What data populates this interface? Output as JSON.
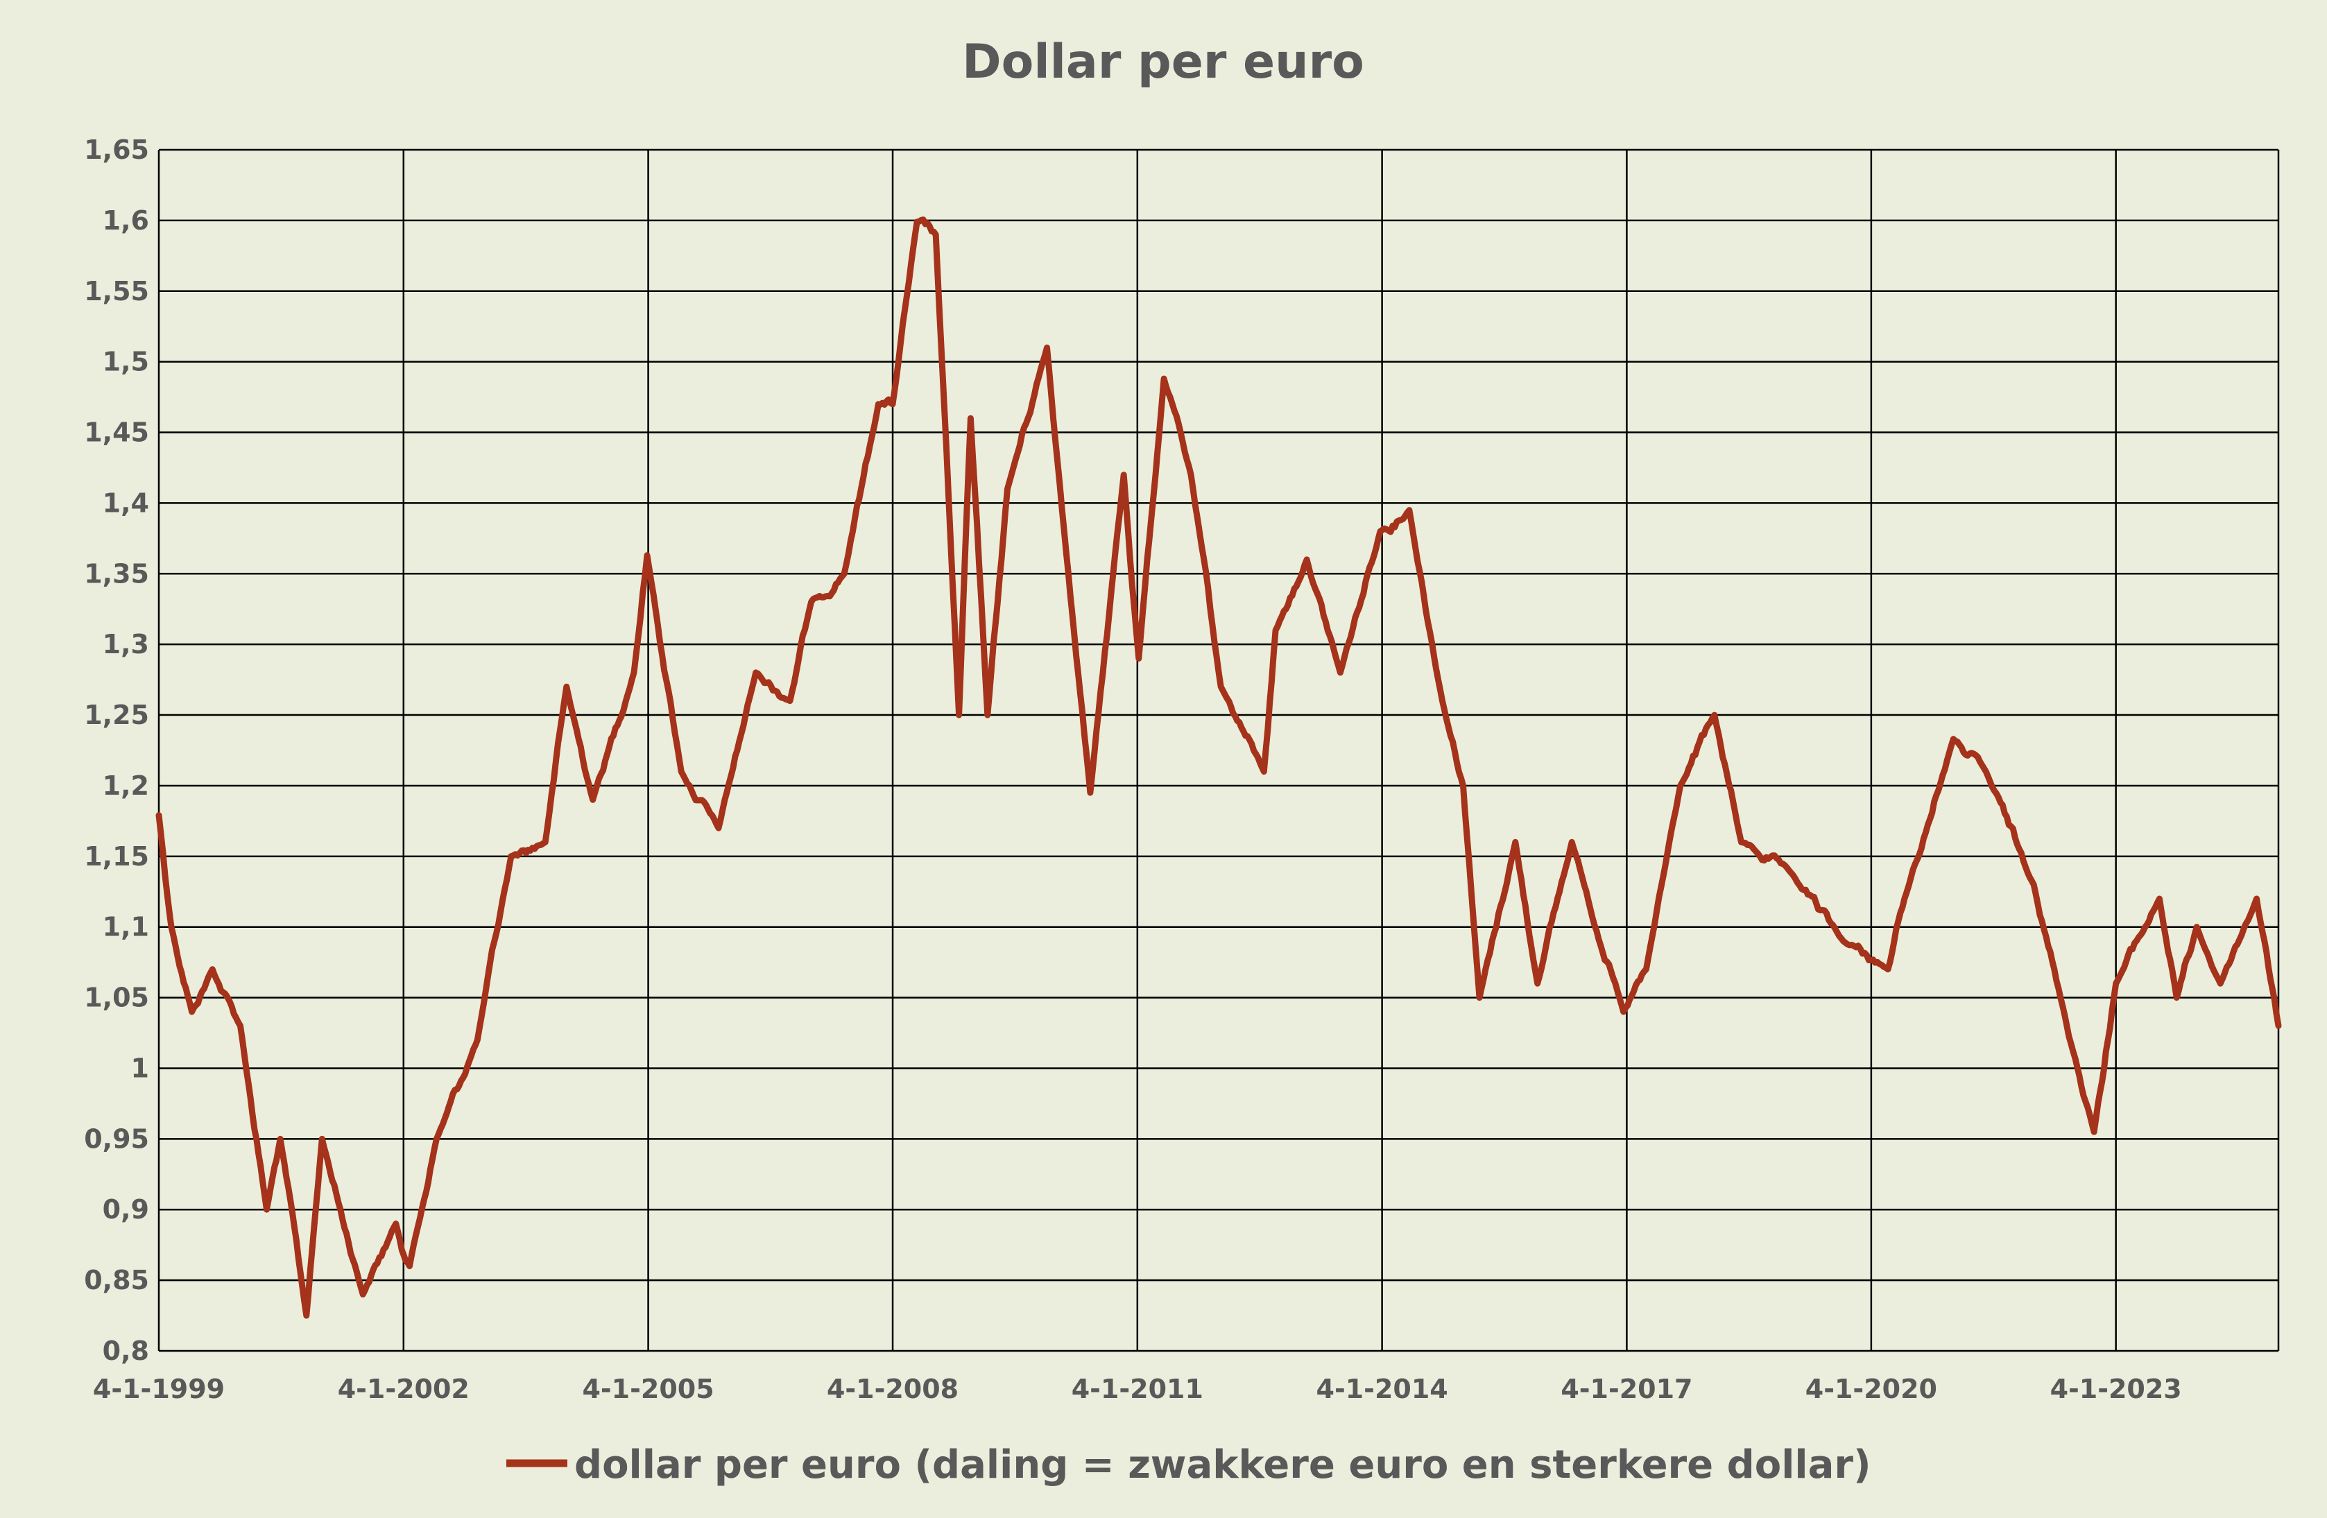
{
  "chart_data": {
    "type": "line",
    "title": "Dollar per euro",
    "xlabel": "",
    "ylabel": "",
    "ylim": [
      0.8,
      1.65
    ],
    "y_ticks": [
      0.8,
      0.85,
      0.9,
      0.95,
      1.0,
      1.05,
      1.1,
      1.15,
      1.2,
      1.25,
      1.3,
      1.35,
      1.4,
      1.45,
      1.5,
      1.55,
      1.6,
      1.65
    ],
    "y_tick_labels": [
      "0,8",
      "0,85",
      "0,9",
      "0,95",
      "1",
      "1,05",
      "1,1",
      "1,15",
      "1,2",
      "1,25",
      "1,3",
      "1,35",
      "1,4",
      "1,45",
      "1,5",
      "1,55",
      "1,6",
      "1,65"
    ],
    "x_range": [
      "1999-01-04",
      "2025-01-01"
    ],
    "x_ticks": [
      "1999-01-04",
      "2002-01-04",
      "2005-01-04",
      "2008-01-04",
      "2011-01-04",
      "2014-01-04",
      "2017-01-04",
      "2020-01-04",
      "2023-01-04"
    ],
    "x_tick_labels": [
      "4-1-1999",
      "4-1-2002",
      "4-1-2005",
      "4-1-2008",
      "4-1-2011",
      "4-1-2014",
      "4-1-2017",
      "4-1-2020",
      "4-1-2023"
    ],
    "grid": true,
    "legend_position": "bottom",
    "colors": {
      "series": "#a5321a",
      "grid": "#000000",
      "text": "#595959",
      "background": "#ebeedc"
    },
    "series": [
      {
        "name": "dollar per euro (daling = zwakkere euro en sterkere dollar)",
        "points": [
          [
            "1999-01-04",
            1.179
          ],
          [
            "1999-03-01",
            1.1
          ],
          [
            "1999-06-01",
            1.04
          ],
          [
            "1999-09-01",
            1.07
          ],
          [
            "2000-01-04",
            1.03
          ],
          [
            "2000-05-01",
            0.9
          ],
          [
            "2000-07-01",
            0.95
          ],
          [
            "2000-10-26",
            0.825
          ],
          [
            "2001-01-04",
            0.95
          ],
          [
            "2001-07-06",
            0.84
          ],
          [
            "2001-12-01",
            0.89
          ],
          [
            "2002-01-31",
            0.86
          ],
          [
            "2002-06-01",
            0.95
          ],
          [
            "2002-12-01",
            1.02
          ],
          [
            "2003-05-01",
            1.15
          ],
          [
            "2003-10-01",
            1.16
          ],
          [
            "2004-01-04",
            1.27
          ],
          [
            "2004-05-01",
            1.19
          ],
          [
            "2004-11-01",
            1.28
          ],
          [
            "2004-12-30",
            1.363
          ],
          [
            "2005-06-01",
            1.21
          ],
          [
            "2005-11-15",
            1.17
          ],
          [
            "2006-05-01",
            1.28
          ],
          [
            "2006-10-01",
            1.26
          ],
          [
            "2007-01-04",
            1.33
          ],
          [
            "2007-06-01",
            1.35
          ],
          [
            "2007-11-01",
            1.47
          ],
          [
            "2008-01-04",
            1.47
          ],
          [
            "2008-04-22",
            1.599
          ],
          [
            "2008-07-15",
            1.59
          ],
          [
            "2008-10-27",
            1.25
          ],
          [
            "2008-12-18",
            1.46
          ],
          [
            "2009-03-04",
            1.25
          ],
          [
            "2009-06-01",
            1.41
          ],
          [
            "2009-11-25",
            1.51
          ],
          [
            "2010-03-01",
            1.35
          ],
          [
            "2010-06-07",
            1.195
          ],
          [
            "2010-11-04",
            1.42
          ],
          [
            "2011-01-10",
            1.29
          ],
          [
            "2011-05-03",
            1.488
          ],
          [
            "2011-09-01",
            1.42
          ],
          [
            "2012-01-13",
            1.27
          ],
          [
            "2012-07-24",
            1.21
          ],
          [
            "2012-09-14",
            1.31
          ],
          [
            "2013-02-01",
            1.36
          ],
          [
            "2013-07-01",
            1.28
          ],
          [
            "2013-12-27",
            1.38
          ],
          [
            "2014-05-06",
            1.395
          ],
          [
            "2014-10-01",
            1.26
          ],
          [
            "2015-01-02",
            1.2
          ],
          [
            "2015-03-16",
            1.05
          ],
          [
            "2015-08-24",
            1.16
          ],
          [
            "2015-12-01",
            1.06
          ],
          [
            "2016-05-03",
            1.16
          ],
          [
            "2016-12-20",
            1.04
          ],
          [
            "2017-04-01",
            1.07
          ],
          [
            "2017-09-01",
            1.2
          ],
          [
            "2018-02-01",
            1.25
          ],
          [
            "2018-06-01",
            1.16
          ],
          [
            "2019-01-01",
            1.14
          ],
          [
            "2019-09-01",
            1.09
          ],
          [
            "2020-03-19",
            1.07
          ],
          [
            "2020-06-01",
            1.12
          ],
          [
            "2021-01-06",
            1.233
          ],
          [
            "2021-06-01",
            1.21
          ],
          [
            "2022-01-01",
            1.13
          ],
          [
            "2022-05-01",
            1.05
          ],
          [
            "2022-09-28",
            0.955
          ],
          [
            "2023-01-04",
            1.06
          ],
          [
            "2023-07-18",
            1.12
          ],
          [
            "2023-10-03",
            1.05
          ],
          [
            "2024-01-01",
            1.1
          ],
          [
            "2024-04-16",
            1.06
          ],
          [
            "2024-09-25",
            1.12
          ],
          [
            "2025-01-01",
            1.03
          ]
        ]
      }
    ]
  }
}
